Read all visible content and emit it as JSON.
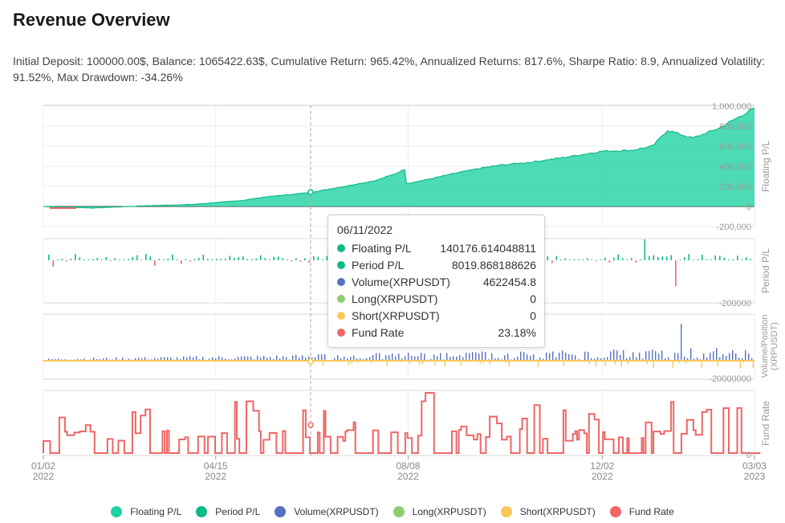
{
  "header": {
    "title": "Revenue Overview",
    "stats": "Initial Deposit: 100000.00$, Balance: 1065422.63$, Cumulative Return: 965.42%, Annualized Returns: 817.6%, Sharpe Ratio: 8.9, Annualized Volatility: 91.52%, Max Drawdown: -34.26%"
  },
  "colors": {
    "floating": "#1fd2a2",
    "period": "#11b98a",
    "volume": "#5470c6",
    "long": "#91cc75",
    "short": "#fac858",
    "fund": "#ee6666",
    "negative": "#ee6666"
  },
  "tooltip": {
    "date": "06/11/2022",
    "rows": [
      {
        "name": "Floating P/L",
        "value": "140176.614048811",
        "color": "#11b98a"
      },
      {
        "name": "Period P/L",
        "value": "8019.868188626",
        "color": "#11b98a"
      },
      {
        "name": "Volume(XRPUSDT)",
        "value": "4622454.8",
        "color": "#5470c6"
      },
      {
        "name": "Long(XRPUSDT)",
        "value": "0",
        "color": "#91cc75"
      },
      {
        "name": "Short(XRPUSDT)",
        "value": "0",
        "color": "#fac858"
      },
      {
        "name": "Fund Rate",
        "value": "23.18%",
        "color": "#ee6666"
      }
    ]
  },
  "legend": [
    {
      "name": "Floating P/L",
      "color": "#1fd2a2"
    },
    {
      "name": "Period P/L",
      "color": "#11b98a"
    },
    {
      "name": "Volume(XRPUSDT)",
      "color": "#5470c6"
    },
    {
      "name": "Long(XRPUSDT)",
      "color": "#91cc75"
    },
    {
      "name": "Short(XRPUSDT)",
      "color": "#fac858"
    },
    {
      "name": "Fund Rate",
      "color": "#ee6666"
    }
  ],
  "chart_data": [
    {
      "type": "area",
      "ylabel": "Floating P/L",
      "ylim": [
        -200000,
        1000000
      ],
      "yticks": [
        "1,000,000",
        "800,000",
        "600,000",
        "400,000",
        "200,000",
        "0",
        "-200,000"
      ],
      "x_range": [
        "2022-01-02",
        "2023-03-03"
      ],
      "x": [
        "2022-01-02",
        "2022-02-01",
        "2022-03-01",
        "2022-04-01",
        "2022-05-01",
        "2022-05-15",
        "2022-06-11",
        "2022-07-01",
        "2022-07-20",
        "2022-08-01",
        "2022-08-06",
        "2022-08-08",
        "2022-08-20",
        "2022-09-05",
        "2022-09-20",
        "2022-10-01",
        "2022-10-20",
        "2022-11-10",
        "2022-12-02",
        "2022-12-20",
        "2023-01-01",
        "2023-01-10",
        "2023-01-25",
        "2023-02-10",
        "2023-03-03"
      ],
      "values": [
        0,
        -15000,
        5000,
        20000,
        60000,
        95000,
        140176,
        200000,
        260000,
        330000,
        370000,
        230000,
        270000,
        330000,
        380000,
        410000,
        440000,
        490000,
        550000,
        560000,
        600000,
        760000,
        680000,
        780000,
        980000
      ]
    },
    {
      "type": "bar",
      "ylabel": "Period P/L",
      "ylim": [
        -200000,
        200000
      ],
      "yticks": [
        "-200000"
      ],
      "x_range": [
        "2022-01-02",
        "2023-03-03"
      ],
      "note": "daily period profit/loss bars, mostly small positive with occasional negative",
      "values": [
        8019.868188626
      ]
    },
    {
      "type": "bar",
      "ylabel": "Volume/Position (XRPUSDT)",
      "ylim": [
        -20000000,
        20000000
      ],
      "yticks": [
        "-20000000"
      ],
      "x_range": [
        "2022-01-02",
        "2023-03-03"
      ],
      "values": [
        4622454.8
      ]
    },
    {
      "type": "line",
      "ylabel": "Fund Rate",
      "ylim": [
        0,
        100
      ],
      "yticks": [
        "0"
      ],
      "x_range": [
        "2022-01-02",
        "2023-03-03"
      ],
      "values": [
        23.18
      ]
    }
  ],
  "xaxis": {
    "ticks": [
      {
        "line1": "01/02",
        "line2": "2022",
        "date": "2022-01-02"
      },
      {
        "line1": "04/15",
        "line2": "2022",
        "date": "2022-04-15"
      },
      {
        "line1": "08/08",
        "line2": "2022",
        "date": "2022-08-08"
      },
      {
        "line1": "12/02",
        "line2": "2022",
        "date": "2022-12-02"
      },
      {
        "line1": "03/03",
        "line2": "2023",
        "date": "2023-03-03"
      }
    ]
  }
}
